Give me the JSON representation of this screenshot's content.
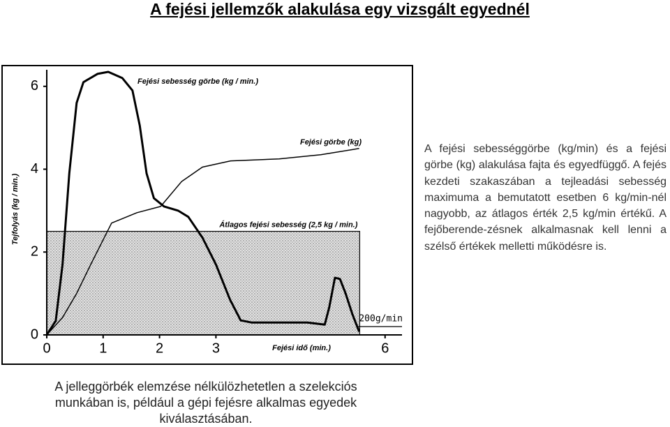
{
  "title": "A fejési jellemzők alakulása egy vizsgált egyednél",
  "chart_data": {
    "type": "line",
    "xlabel": "Fejési idő (min.)",
    "ylabel": "Tejfolyás (kg / min.)",
    "xlim": [
      0,
      6.3
    ],
    "ylim": [
      0,
      6.4
    ],
    "xticks": [
      0,
      1,
      2,
      3,
      6
    ],
    "yticks": [
      0,
      2,
      4,
      6
    ],
    "series": [
      {
        "name": "Fejési sebesség görbe (kg / min.)",
        "color": "#000000",
        "x": [
          0,
          0.16,
          0.28,
          0.4,
          0.53,
          0.65,
          0.9,
          1.09,
          1.34,
          1.52,
          1.65,
          1.77,
          1.9,
          2.08,
          2.33,
          2.51,
          2.76,
          3.0,
          3.25,
          3.44,
          3.63,
          4.12,
          4.62,
          4.93,
          5.01,
          5.11,
          5.2,
          5.3,
          5.42,
          5.54
        ],
        "values": [
          0,
          0.34,
          1.7,
          3.9,
          5.6,
          6.1,
          6.3,
          6.35,
          6.2,
          5.9,
          5.05,
          3.9,
          3.3,
          3.1,
          3.0,
          2.85,
          2.35,
          1.7,
          0.85,
          0.35,
          0.3,
          0.3,
          0.3,
          0.25,
          0.67,
          1.38,
          1.35,
          1.0,
          0.5,
          0.08
        ]
      },
      {
        "name": "Fejési görbe (kg)",
        "color": "#000000",
        "x": [
          0,
          0.28,
          0.53,
          0.78,
          1.15,
          1.6,
          2.02,
          2.39,
          2.76,
          3.26,
          4.12,
          4.86,
          5.54
        ],
        "values": [
          0,
          0.42,
          1.0,
          1.7,
          2.7,
          2.95,
          3.1,
          3.7,
          4.05,
          4.2,
          4.25,
          4.35,
          4.5
        ]
      }
    ],
    "reference_lines": [
      {
        "label": "Átlagos fejési sebesség (2,5 kg / min.)",
        "value": 2.5,
        "x_range": [
          0,
          5.55
        ],
        "shaded": true
      },
      {
        "label": "200g/min",
        "value": 0.2,
        "x_range": [
          5.5,
          6.3
        ],
        "shaded": false
      }
    ]
  },
  "paragraph": "A fejési sebességgörbe (kg/min) és a fejési görbe (kg) alakulása fajta és egyedfüggő. A fejés kezdeti szakaszában a tejleadási sebesség maximuma a bemutatott esetben 6 kg/min-nél nagyobb, az átlagos érték 2,5 kg/min értékű. A fejőberende-zésnek alkalmasnak kell lenni a szélső értékek melletti működésre is.",
  "caption": "A jelleggörbék elemzése nélkülözhetetlen a szelekciós munkában is, például a gépi fejésre alkalmas egyedek kiválasztásában."
}
